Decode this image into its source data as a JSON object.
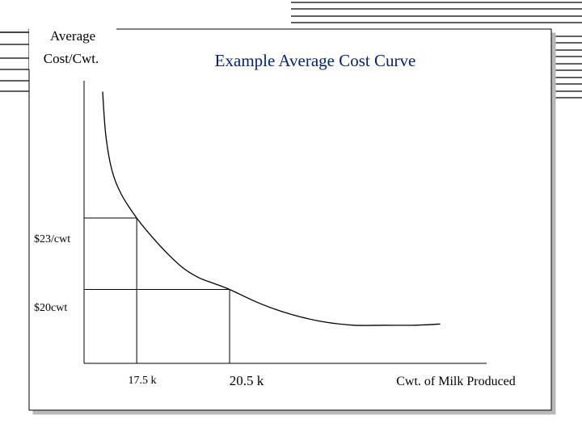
{
  "colors": {
    "title": "#00247d",
    "axis": "#000000",
    "frame_shadow": "#b8b8b8",
    "decoration_lines": "#000000"
  },
  "chart_data": {
    "type": "line",
    "title": "Example Average Cost Curve",
    "ylabel_line1": "Average",
    "ylabel_line2": "Cost/Cwt.",
    "xlabel": "Cwt. of Milk Produced",
    "grid": false,
    "legend": "none",
    "y_ticks": [
      "$23/cwt",
      "$20cwt"
    ],
    "x_ticks": [
      "17.5 k",
      "20.5 k"
    ],
    "reference_points": [
      {
        "x": 17.5,
        "y": 23,
        "x_label": "17.5 k",
        "y_label": "$23/cwt"
      },
      {
        "x": 20.5,
        "y": 20,
        "x_label": "20.5 k",
        "y_label": "$20cwt"
      }
    ],
    "xlim": [
      15.8,
      28.8
    ],
    "ylim": [
      16.9,
      29.1
    ],
    "series": [
      {
        "x": [
          16.4,
          16.5,
          16.7,
          17.0,
          17.5,
          18.0,
          18.5,
          19.0,
          19.5,
          20.0,
          20.5,
          21.5,
          22.5,
          23.5,
          24.5,
          25.5,
          26.5,
          27.3
        ],
        "y": [
          28.3,
          26.5,
          25.0,
          24.0,
          23.0,
          22.2,
          21.5,
          20.9,
          20.5,
          20.25,
          20.0,
          19.4,
          18.95,
          18.65,
          18.5,
          18.5,
          18.5,
          18.55
        ]
      }
    ]
  }
}
